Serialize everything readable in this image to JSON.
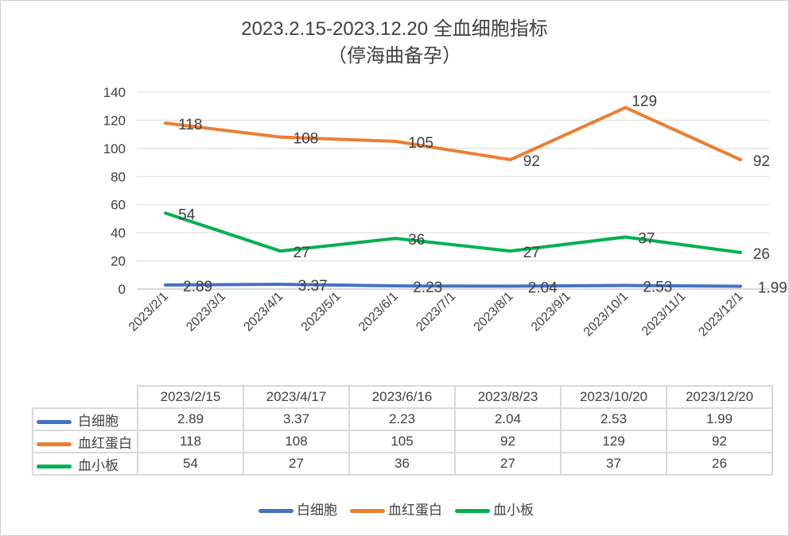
{
  "title_line1": "2023.2.15-2023.12.20 全血细胞指标",
  "title_line2": "（停海曲备孕）",
  "chart_data": {
    "type": "line",
    "title": "2023.2.15-2023.12.20 全血细胞指标（停海曲备孕）",
    "x_tick_labels": [
      "2023/2/1",
      "2023/3/1",
      "2023/4/1",
      "2023/5/1",
      "2023/6/1",
      "2023/7/1",
      "2023/8/1",
      "2023/9/1",
      "2023/10/1",
      "2023/11/1",
      "2023/12/1"
    ],
    "dates": [
      "2023/2/15",
      "2023/4/17",
      "2023/6/16",
      "2023/8/23",
      "2023/10/20",
      "2023/12/20"
    ],
    "date_month_index": [
      0,
      2,
      4,
      6,
      8,
      10
    ],
    "y_ticks": [
      "0",
      "20",
      "40",
      "60",
      "80",
      "100",
      "120",
      "140"
    ],
    "ylim": [
      0,
      140
    ],
    "grid": true,
    "legend_position": "bottom",
    "series": [
      {
        "name": "白细胞",
        "color": "#4472C4",
        "values": [
          2.89,
          3.37,
          2.23,
          2.04,
          2.53,
          1.99
        ],
        "labels": [
          "2.89",
          "3.37",
          "2.23",
          "2.04",
          "2.53",
          "1.99"
        ]
      },
      {
        "name": "血红蛋白",
        "color": "#ED7D31",
        "values": [
          118,
          108,
          105,
          92,
          129,
          92
        ],
        "labels": [
          "118",
          "108",
          "105",
          "92",
          "129",
          "92"
        ]
      },
      {
        "name": "血小板",
        "color": "#00B050",
        "values": [
          54,
          27,
          36,
          27,
          37,
          26
        ],
        "labels": [
          "54",
          "27",
          "36",
          "27",
          "37",
          "26"
        ]
      }
    ]
  }
}
